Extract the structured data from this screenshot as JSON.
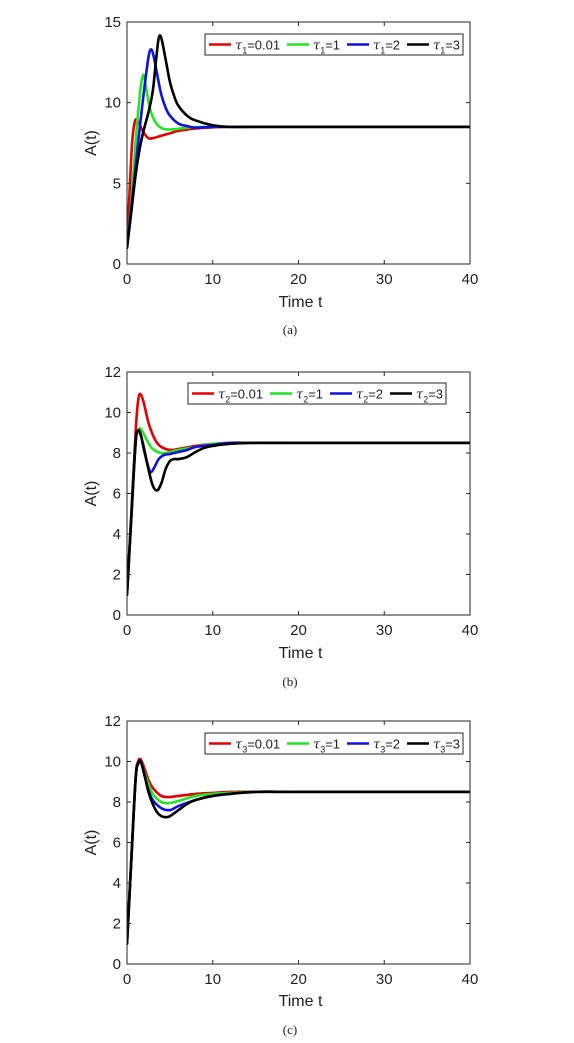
{
  "chart_data": [
    {
      "type": "line",
      "caption": "(a)",
      "xlabel": "Time t",
      "ylabel": "A(t)",
      "xlim": [
        0,
        40
      ],
      "ylim": [
        0,
        15
      ],
      "xticks": [
        0,
        10,
        20,
        30,
        40
      ],
      "yticks": [
        0,
        5,
        10,
        15
      ],
      "legend_location": "top-right",
      "grid": false,
      "series": [
        {
          "name": "τ1=0.01",
          "symbol": "τ",
          "sub": "1",
          "value": "=0.01",
          "color": "#e60000",
          "x": [
            0,
            0.3,
            0.6,
            0.9,
            1.2,
            1.5,
            2,
            2.5,
            3,
            4,
            5,
            6,
            8,
            10,
            12,
            15,
            20,
            30,
            40
          ],
          "y": [
            1,
            4.5,
            7.5,
            8.8,
            8.9,
            8.6,
            8.1,
            7.8,
            7.8,
            7.95,
            8.1,
            8.25,
            8.4,
            8.47,
            8.5,
            8.5,
            8.5,
            8.5,
            8.5
          ]
        },
        {
          "name": "τ1=1",
          "symbol": "τ",
          "sub": "1",
          "value": "=1",
          "color": "#22e622",
          "x": [
            0,
            0.5,
            1,
            1.5,
            1.8,
            2,
            2.3,
            2.7,
            3.2,
            3.8,
            4.5,
            5.5,
            7,
            9,
            12,
            20,
            30,
            40
          ],
          "y": [
            1,
            3.8,
            7.5,
            10.5,
            11.6,
            11.6,
            10.7,
            9.6,
            8.9,
            8.5,
            8.35,
            8.35,
            8.45,
            8.5,
            8.5,
            8.5,
            8.5,
            8.5
          ]
        },
        {
          "name": "τ1=2",
          "symbol": "τ",
          "sub": "1",
          "value": "=2",
          "color": "#1010e0",
          "x": [
            0,
            0.5,
            1,
            1.5,
            2,
            2.5,
            2.8,
            3.1,
            3.5,
            4,
            4.5,
            5,
            6,
            7,
            8,
            10,
            12,
            15,
            20,
            30,
            40
          ],
          "y": [
            1,
            3.5,
            6,
            8.5,
            10.8,
            12.8,
            13.3,
            12.9,
            11.8,
            10.5,
            9.7,
            9.2,
            8.7,
            8.55,
            8.45,
            8.5,
            8.5,
            8.5,
            8.5,
            8.5,
            8.5
          ]
        },
        {
          "name": "τ1=3",
          "symbol": "τ",
          "sub": "1",
          "value": "=3",
          "color": "#000000",
          "x": [
            0,
            0.5,
            1,
            1.5,
            2,
            2.5,
            3,
            3.4,
            3.7,
            4,
            4.5,
            5,
            5.5,
            6,
            7,
            8,
            10,
            12,
            15,
            20,
            30,
            40
          ],
          "y": [
            1,
            3.2,
            5.5,
            7.2,
            8.4,
            9.4,
            10.7,
            12.7,
            14.0,
            14.0,
            12.7,
            11.3,
            10.4,
            9.8,
            9.2,
            8.9,
            8.6,
            8.5,
            8.5,
            8.5,
            8.5,
            8.5
          ]
        }
      ]
    },
    {
      "type": "line",
      "caption": "(b)",
      "xlabel": "Time t",
      "ylabel": "A(t)",
      "xlim": [
        0,
        40
      ],
      "ylim": [
        0,
        12
      ],
      "xticks": [
        0,
        10,
        20,
        30,
        40
      ],
      "yticks": [
        0,
        2,
        4,
        6,
        8,
        10,
        12
      ],
      "legend_location": "top-right",
      "grid": false,
      "series": [
        {
          "name": "τ2=0.01",
          "symbol": "τ",
          "sub": "2",
          "value": "=0.01",
          "color": "#e60000",
          "x": [
            0,
            0.5,
            1,
            1.3,
            1.6,
            2,
            2.5,
            3,
            3.5,
            4,
            5,
            6,
            8,
            10,
            12,
            15,
            20,
            30,
            40
          ],
          "y": [
            1,
            5,
            9,
            10.6,
            10.9,
            10.4,
            9.5,
            8.9,
            8.5,
            8.3,
            8.15,
            8.2,
            8.35,
            8.45,
            8.5,
            8.5,
            8.5,
            8.5,
            8.5
          ]
        },
        {
          "name": "τ2=1",
          "symbol": "τ",
          "sub": "2",
          "value": "=1",
          "color": "#22e622",
          "x": [
            0,
            0.5,
            1,
            1.3,
            1.6,
            2,
            2.5,
            3,
            4,
            5,
            6,
            8,
            10,
            12,
            15,
            20,
            30,
            40
          ],
          "y": [
            1,
            4.8,
            8.4,
            9.1,
            9.2,
            8.9,
            8.5,
            8.2,
            8.0,
            8.05,
            8.15,
            8.3,
            8.45,
            8.5,
            8.5,
            8.5,
            8.5,
            8.5
          ]
        },
        {
          "name": "τ2=2",
          "symbol": "τ",
          "sub": "2",
          "value": "=2",
          "color": "#1010e0",
          "x": [
            0,
            0.5,
            1,
            1.3,
            1.6,
            2,
            2.5,
            2.8,
            3.2,
            3.7,
            4.3,
            5,
            6,
            7,
            8,
            10,
            12,
            15,
            20,
            30,
            40
          ],
          "y": [
            1,
            4.8,
            8.5,
            9.1,
            8.9,
            8.1,
            7.3,
            7.05,
            7.3,
            7.7,
            7.9,
            7.95,
            8.05,
            8.15,
            8.3,
            8.4,
            8.5,
            8.5,
            8.5,
            8.5,
            8.5
          ]
        },
        {
          "name": "τ2=3",
          "symbol": "τ",
          "sub": "2",
          "value": "=3",
          "color": "#000000",
          "x": [
            0,
            0.5,
            1,
            1.3,
            1.6,
            2,
            2.5,
            3,
            3.5,
            4,
            4.5,
            5,
            5.5,
            6,
            7,
            8,
            9,
            10,
            12,
            15,
            20,
            30,
            40
          ],
          "y": [
            1,
            4.8,
            8.5,
            9.1,
            8.9,
            8.2,
            7.2,
            6.4,
            6.15,
            6.5,
            7.2,
            7.6,
            7.7,
            7.7,
            7.8,
            8.05,
            8.25,
            8.35,
            8.45,
            8.5,
            8.5,
            8.5,
            8.5
          ]
        }
      ]
    },
    {
      "type": "line",
      "caption": "(c)",
      "xlabel": "Time t",
      "ylabel": "A(t)",
      "xlim": [
        0,
        40
      ],
      "ylim": [
        0,
        12
      ],
      "xticks": [
        0,
        10,
        20,
        30,
        40
      ],
      "yticks": [
        0,
        2,
        4,
        6,
        8,
        10,
        12
      ],
      "legend_location": "top-right",
      "grid": false,
      "series": [
        {
          "name": "τ3=0.01",
          "symbol": "τ",
          "sub": "3",
          "value": "=0.01",
          "color": "#e60000",
          "x": [
            0,
            0.5,
            1,
            1.3,
            1.6,
            2,
            2.5,
            3,
            4,
            5,
            6,
            8,
            10,
            12,
            15,
            20,
            30,
            40
          ],
          "y": [
            1,
            5.2,
            9.2,
            10.0,
            10.1,
            9.7,
            9.1,
            8.7,
            8.3,
            8.25,
            8.3,
            8.4,
            8.45,
            8.5,
            8.5,
            8.5,
            8.5,
            8.5
          ]
        },
        {
          "name": "τ3=1",
          "symbol": "τ",
          "sub": "3",
          "value": "=1",
          "color": "#22e622",
          "x": [
            0,
            0.5,
            1,
            1.3,
            1.6,
            2,
            2.5,
            3,
            4,
            5,
            6,
            8,
            10,
            12,
            15,
            20,
            30,
            40
          ],
          "y": [
            1,
            5.1,
            9.1,
            9.9,
            10.0,
            9.5,
            8.9,
            8.4,
            8.0,
            7.95,
            8.05,
            8.3,
            8.4,
            8.45,
            8.5,
            8.5,
            8.5,
            8.5
          ]
        },
        {
          "name": "τ3=2",
          "symbol": "τ",
          "sub": "3",
          "value": "=2",
          "color": "#1010e0",
          "x": [
            0,
            0.5,
            1,
            1.3,
            1.6,
            2,
            2.5,
            3,
            4,
            5,
            6,
            8,
            10,
            12,
            15,
            20,
            30,
            40
          ],
          "y": [
            1,
            5.1,
            9.1,
            9.9,
            10.0,
            9.4,
            8.6,
            8.1,
            7.7,
            7.6,
            7.8,
            8.1,
            8.3,
            8.4,
            8.5,
            8.5,
            8.5,
            8.5
          ]
        },
        {
          "name": "τ3=3",
          "symbol": "τ",
          "sub": "3",
          "value": "=3",
          "color": "#000000",
          "x": [
            0,
            0.5,
            1,
            1.3,
            1.6,
            2,
            2.5,
            3,
            3.5,
            4,
            4.5,
            5,
            6,
            7,
            8,
            10,
            12,
            15,
            20,
            30,
            40
          ],
          "y": [
            1,
            5.1,
            9.1,
            9.9,
            10.0,
            9.4,
            8.5,
            7.9,
            7.5,
            7.3,
            7.25,
            7.3,
            7.6,
            7.9,
            8.1,
            8.3,
            8.4,
            8.5,
            8.5,
            8.5,
            8.5
          ]
        }
      ]
    }
  ]
}
